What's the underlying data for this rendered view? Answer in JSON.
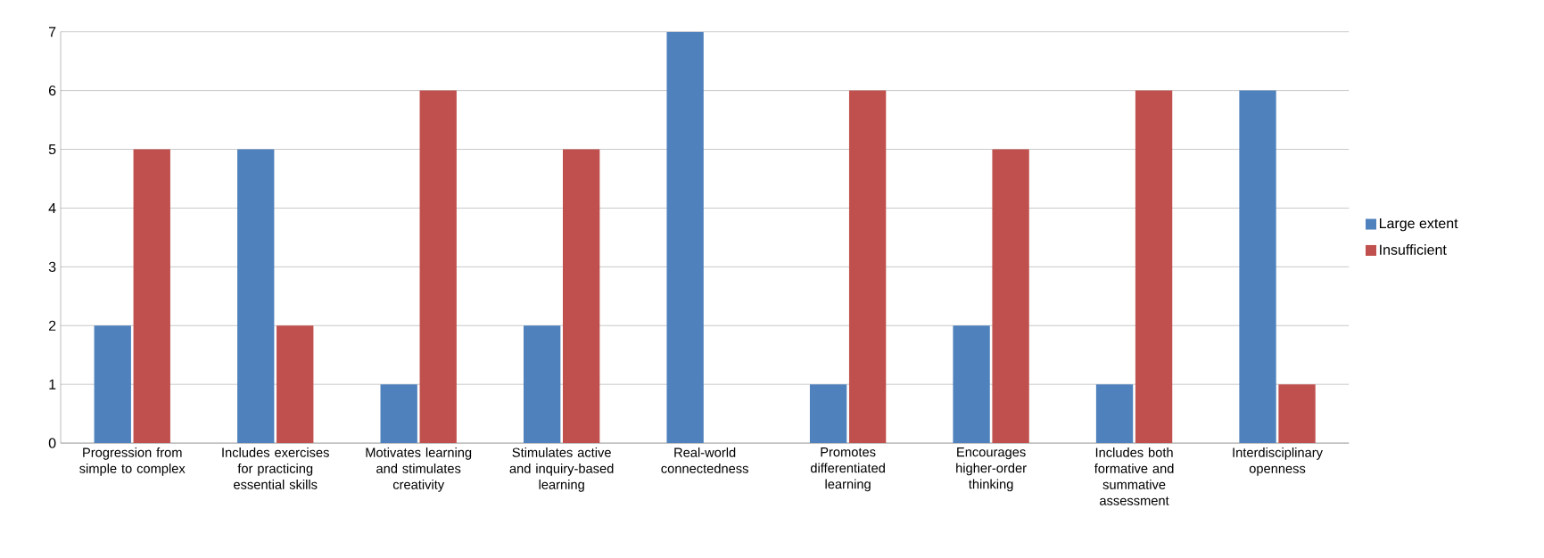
{
  "chart_data": {
    "type": "bar",
    "categories": [
      "Progression from simple to complex",
      "Includes exercises for practicing essential skills",
      "Motivates learning and stimulates creativity",
      "Stimulates active and inquiry-based learning",
      "Real-world connectedness",
      "Promotes differentiated learning",
      "Encourages higher-order thinking",
      "Includes both formative and summative assessment",
      "Interdisciplinary openness"
    ],
    "series": [
      {
        "name": "Large extent",
        "color": "#4f81bd",
        "values": [
          2,
          5,
          1,
          2,
          7,
          1,
          2,
          1,
          6
        ]
      },
      {
        "name": "Insufficient",
        "color": "#c0504d",
        "values": [
          5,
          2,
          6,
          5,
          0,
          6,
          5,
          6,
          1
        ]
      }
    ],
    "ylim": [
      0,
      7
    ],
    "yticks": [
      0,
      1,
      2,
      3,
      4,
      5,
      6,
      7
    ],
    "grid": "y",
    "legend": "right"
  }
}
